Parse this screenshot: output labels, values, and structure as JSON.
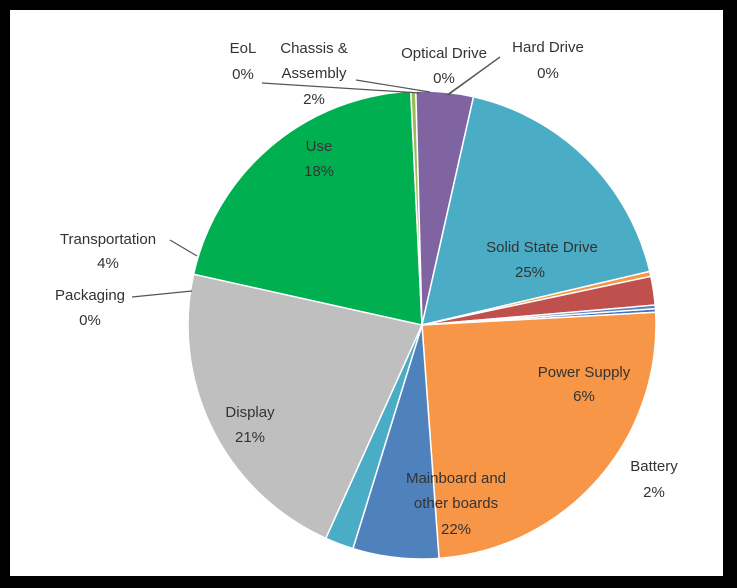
{
  "chart_data": {
    "type": "pie",
    "title": "",
    "slices": [
      {
        "name": "Hard Drive",
        "value": 0,
        "percent_label": "0%",
        "color": "#4472c4"
      },
      {
        "name": "Solid State Drive",
        "value": 25,
        "percent_label": "25%",
        "color": "#f79646"
      },
      {
        "name": "Power Supply",
        "value": 6,
        "percent_label": "6%",
        "color": "#4f81bd"
      },
      {
        "name": "Battery",
        "value": 2,
        "percent_label": "2%",
        "color": "#4bacc6"
      },
      {
        "name": "Mainboard and other boards",
        "value": 22,
        "percent_label": "22%",
        "color": "#bfbfbf"
      },
      {
        "name": "Display",
        "value": 21,
        "percent_label": "21%",
        "color": "#00b050"
      },
      {
        "name": "Packaging",
        "value": 0,
        "percent_label": "0%",
        "color": "#9bbb59"
      },
      {
        "name": "Transportation",
        "value": 4,
        "percent_label": "4%",
        "color": "#8064a2"
      },
      {
        "name": "Use",
        "value": 18,
        "percent_label": "18%",
        "color": "#4bacc6"
      },
      {
        "name": "EoL",
        "value": 0,
        "percent_label": "0%",
        "color": "#f79646"
      },
      {
        "name": "Chassis & Assembly",
        "value": 2,
        "percent_label": "2%",
        "color": "#c0504d"
      },
      {
        "name": "Optical Drive",
        "value": 0,
        "percent_label": "0%",
        "color": "#4f81bd"
      }
    ]
  }
}
